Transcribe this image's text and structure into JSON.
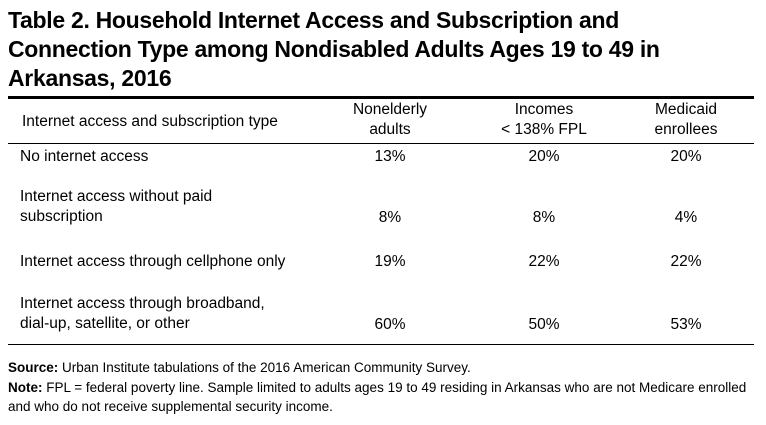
{
  "title": {
    "line1": "Table 2. Household Internet Access and Subscription and",
    "line2": "Connection Type among Nondisabled Adults Ages 19 to 49 in",
    "line3": "Arkansas, 2016"
  },
  "table": {
    "header": {
      "row_label": "Internet access and subscription type",
      "columns": [
        {
          "line1": "Nonelderly",
          "line2": "adults"
        },
        {
          "line1": "Incomes",
          "line2": "< 138% FPL"
        },
        {
          "line1": "Medicaid",
          "line2": "enrollees"
        }
      ]
    },
    "rows": [
      {
        "label_line1": "No internet access",
        "label_line2": "",
        "values": [
          "13%",
          "20%",
          "20%"
        ]
      },
      {
        "label_line1": "Internet access without paid",
        "label_line2": "subscription",
        "values": [
          "8%",
          "8%",
          "4%"
        ]
      },
      {
        "label_line1": "Internet access through cellphone only",
        "label_line2": "",
        "values": [
          "19%",
          "22%",
          "22%"
        ]
      },
      {
        "label_line1": "Internet access through broadband,",
        "label_line2": "dial-up, satellite, or other",
        "values": [
          "60%",
          "50%",
          "53%"
        ]
      }
    ]
  },
  "notes": {
    "source_label": "Source:",
    "source_text": "Urban Institute tabulations of the 2016 American Community Survey.",
    "note_label": "Note:",
    "note_text": "FPL = federal poverty line. Sample limited to adults ages 19 to 49 residing in Arkansas who are not Medicare enrolled and who do not receive supplemental security income."
  }
}
